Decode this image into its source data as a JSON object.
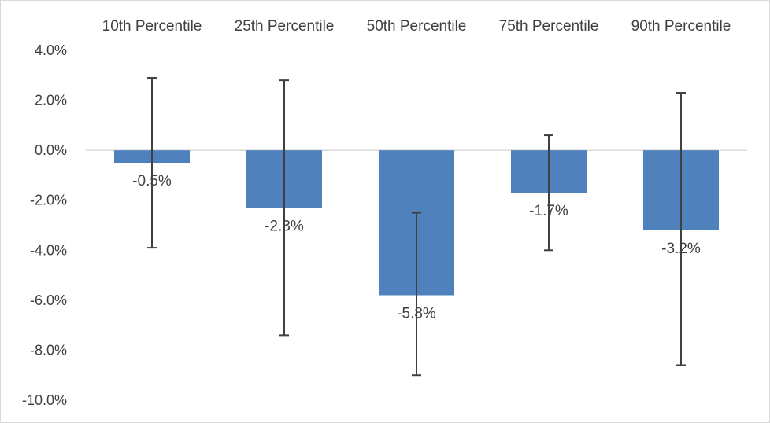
{
  "chart_data": {
    "type": "bar",
    "categories": [
      "10th Percentile",
      "25th Percentile",
      "50th Percentile",
      "75th Percentile",
      "90th Percentile"
    ],
    "series": [
      {
        "values": [
          -0.5,
          -2.3,
          -5.8,
          -1.7,
          -3.2
        ],
        "data_labels": [
          "-0.5%",
          "-2.3%",
          "-5.8%",
          "-1.7%",
          "-3.2%"
        ],
        "error_high": [
          2.9,
          2.8,
          -2.5,
          0.6,
          2.3
        ],
        "error_low": [
          -3.9,
          -7.4,
          -9.0,
          -4.0,
          -8.6
        ],
        "color": "#4f81bd"
      }
    ],
    "y_ticks": [
      "4.0%",
      "2.0%",
      "0.0%",
      "-2.0%",
      "-4.0%",
      "-6.0%",
      "-8.0%",
      "-10.0%"
    ],
    "ylim": [
      -10,
      4
    ],
    "y_unit": "%",
    "xlabel": "",
    "ylabel": "",
    "title": "",
    "category_labels_position": "top",
    "grid": false,
    "legend": "none",
    "zero_line_color": "#d9d9d9",
    "error_bar_color": "#404040"
  }
}
